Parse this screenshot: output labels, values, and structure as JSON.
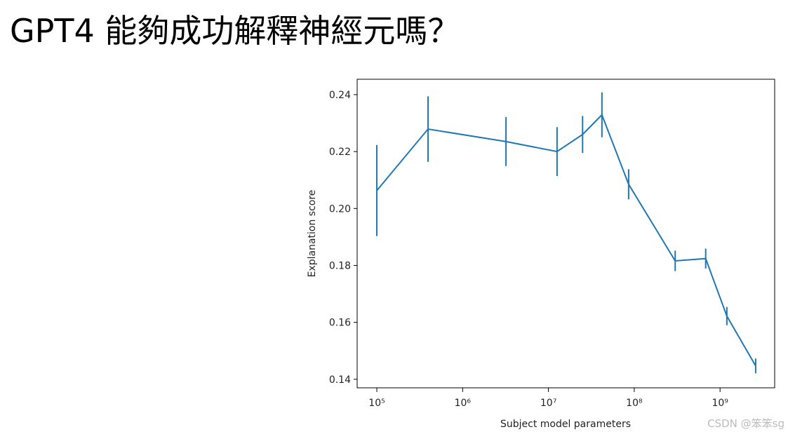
{
  "slide_title": "GPT4 能夠成功解釋神經元嗎？",
  "watermark": "CSDN @笨笨sg",
  "chart_data": {
    "type": "errorbar-line",
    "xlabel": "Subject model parameters",
    "ylabel": "Explanation score",
    "xscale": "log",
    "color": "#1f77b4",
    "x": [
      100000,
      395000,
      3200000,
      12600000,
      25000000,
      42000000,
      86000000,
      300000000,
      680000000,
      1200000000,
      2600000000
    ],
    "values": [
      0.2063,
      0.2279,
      0.2235,
      0.22,
      0.226,
      0.2329,
      0.2085,
      0.1816,
      0.1824,
      0.1622,
      0.1447
    ],
    "errors": [
      0.016,
      0.0115,
      0.0086,
      0.0086,
      0.0065,
      0.0079,
      0.0053,
      0.0036,
      0.0035,
      0.0032,
      0.0026
    ],
    "xlim": [
      59000,
      4330000000
    ],
    "ylim": [
      0.137,
      0.2454
    ],
    "xticks": [
      {
        "value": 100000,
        "label": "10⁵"
      },
      {
        "value": 1000000,
        "label": "10⁶"
      },
      {
        "value": 10000000,
        "label": "10⁷"
      },
      {
        "value": 100000000,
        "label": "10⁸"
      },
      {
        "value": 1000000000,
        "label": "10⁹"
      }
    ],
    "yticks": [
      0.14,
      0.16,
      0.18,
      {
        "value": 0.2,
        "label": "0.20"
      },
      0.22,
      0.24
    ]
  }
}
